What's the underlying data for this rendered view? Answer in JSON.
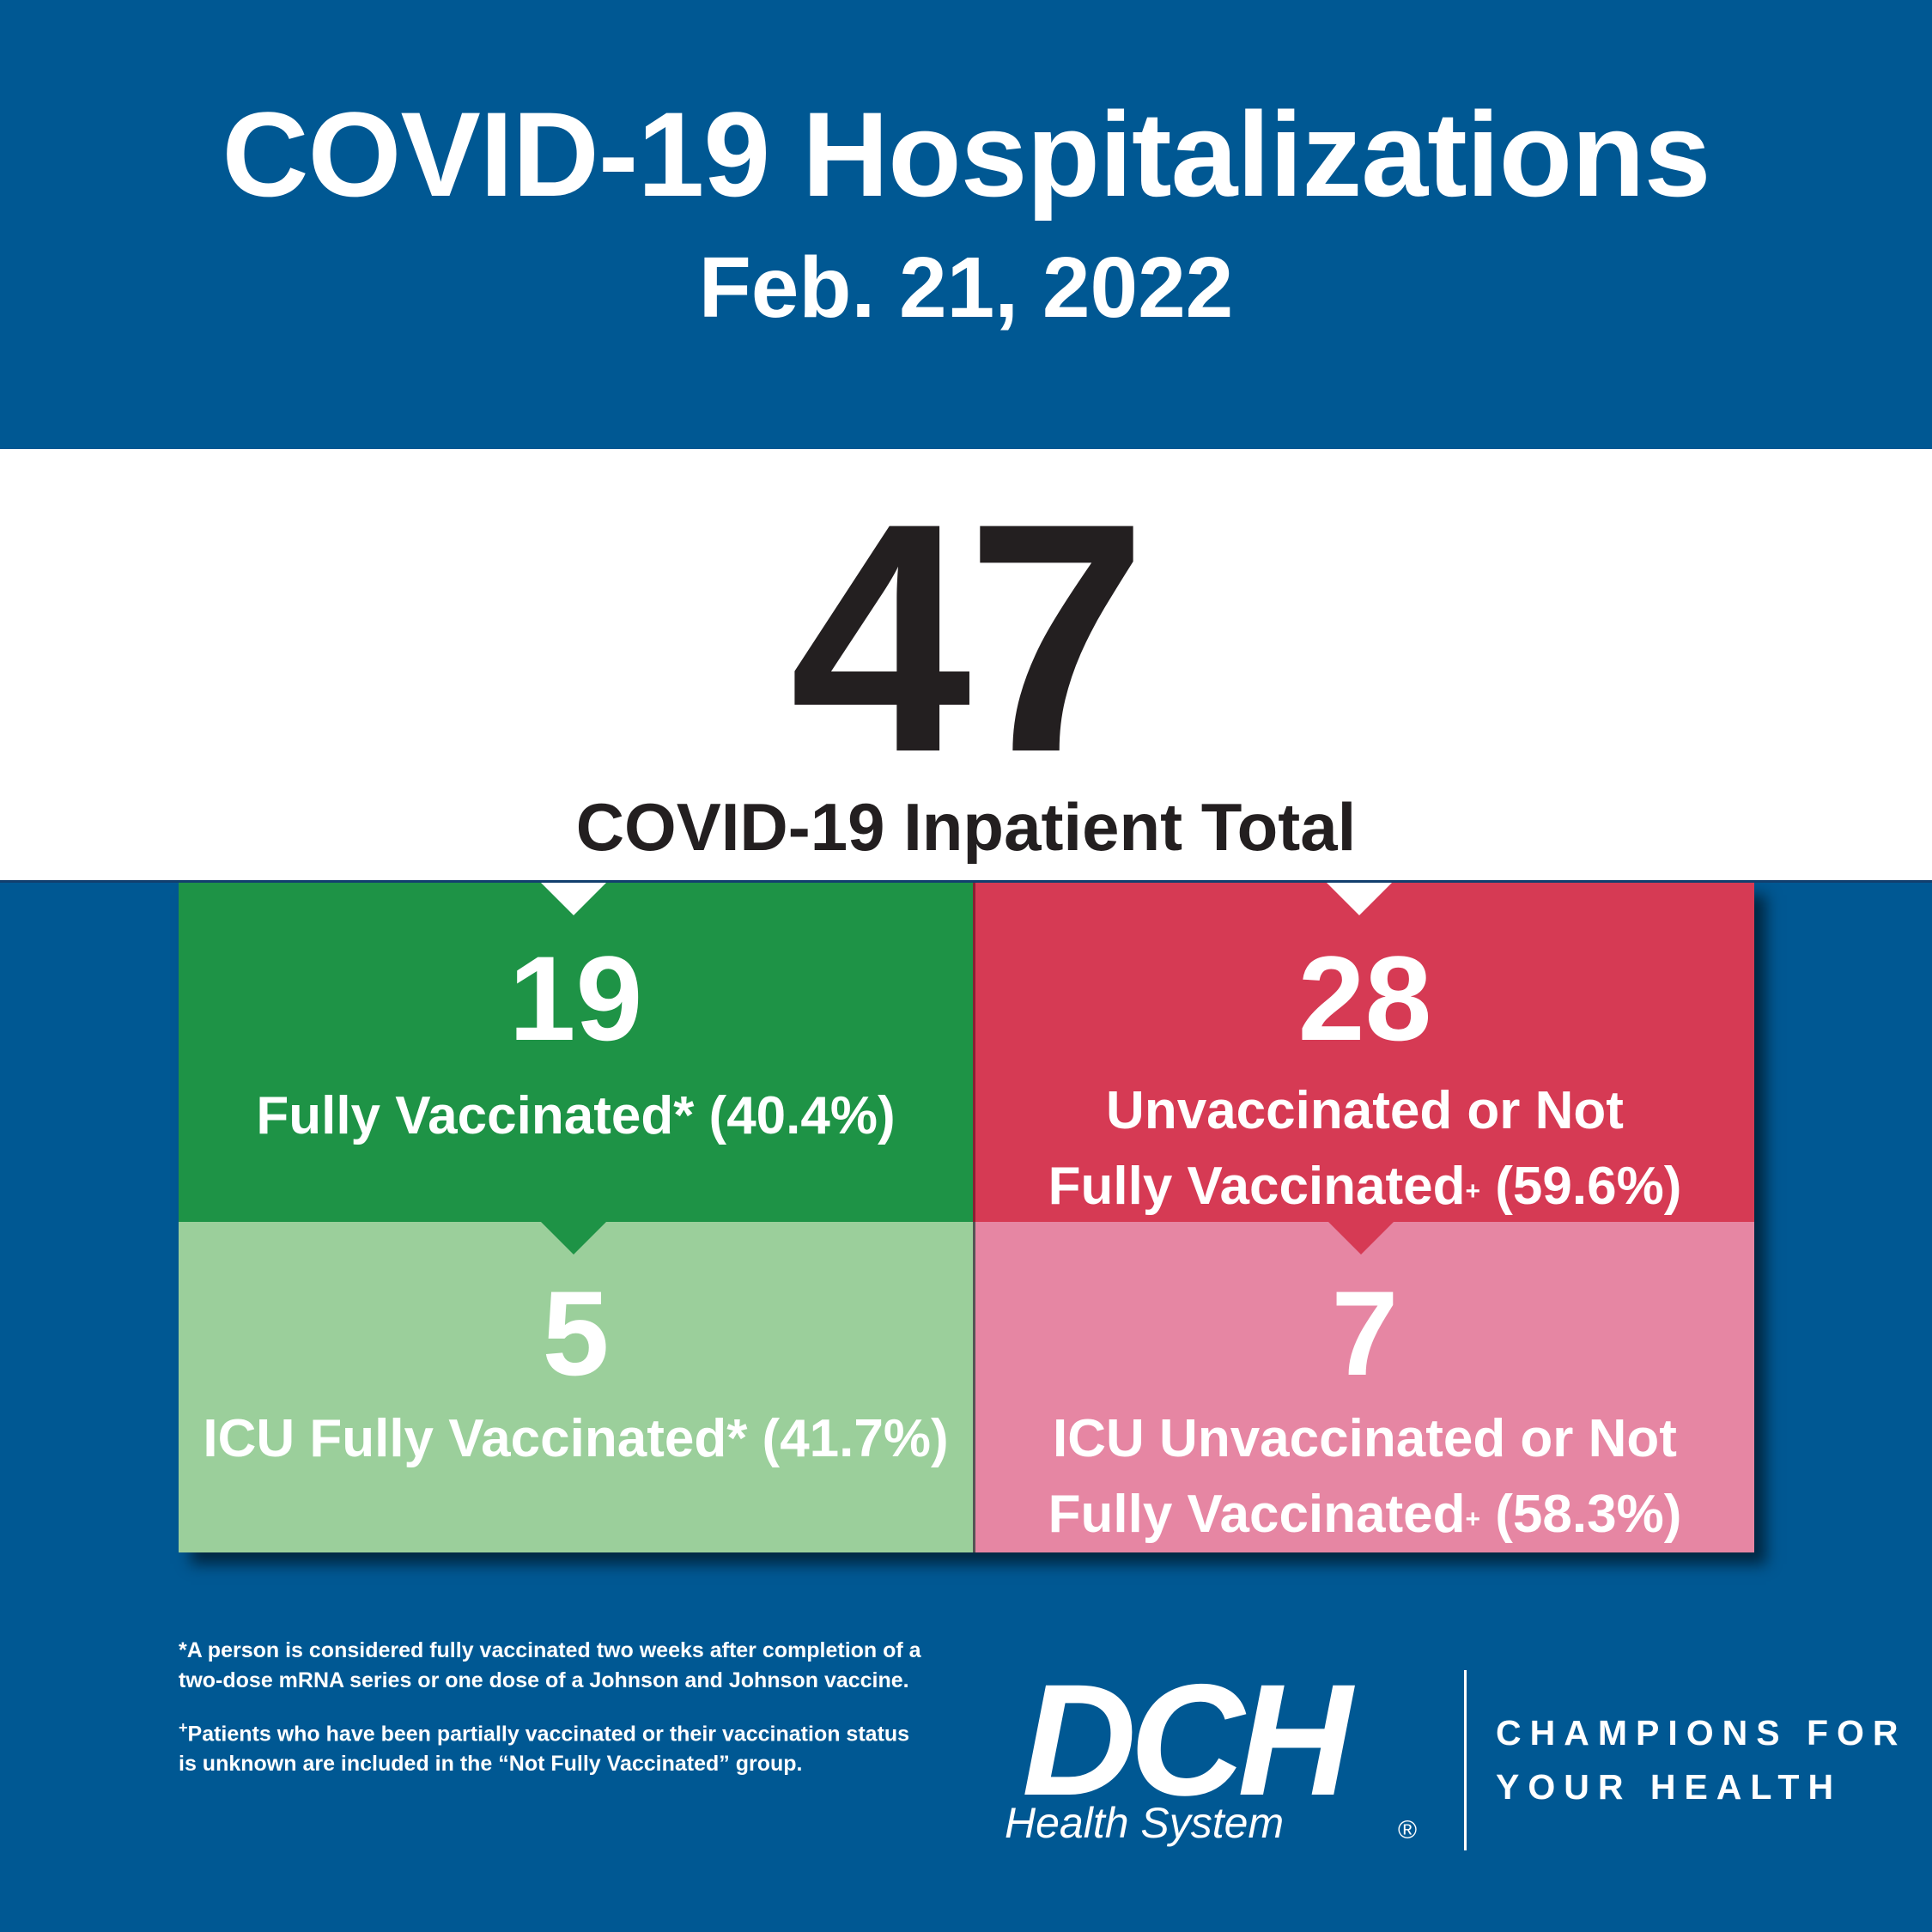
{
  "header": {
    "title": "COVID-19 Hospitalizations",
    "date": "Feb. 21, 2022"
  },
  "total": {
    "value": "47",
    "label": "COVID-19 Inpatient Total"
  },
  "boxes": {
    "fully_vaccinated": {
      "value": "19",
      "label": "Fully Vaccinated* (40.4%)",
      "color": "#1e9346"
    },
    "unvaccinated": {
      "value": "28",
      "line1": "Unvaccinated or Not",
      "line2": "Fully Vaccinated",
      "mark": "+",
      "pct": " (59.6%)",
      "color": "#d63a54"
    },
    "icu_fully_vaccinated": {
      "value": "5",
      "label": "ICU Fully Vaccinated* (41.7%)",
      "color": "#9bcf9b"
    },
    "icu_unvaccinated": {
      "value": "7",
      "line1": "ICU Unvaccinated or Not",
      "line2": "Fully Vaccinated",
      "mark": "+",
      "pct": " (58.3%)",
      "color": "#e686a3"
    }
  },
  "footnotes": {
    "asterisk": "*A person is considered fully vaccinated two weeks after completion of a two-dose mRNA series or one dose of a Johnson and Johnson vaccine.",
    "plus_mark": "+",
    "plus": "Patients who have been partially vaccinated or their vaccination status is unknown are included in the “Not Fully Vaccinated” group."
  },
  "logo": {
    "letters": "DCH",
    "subtitle": "Health System",
    "registered": "®"
  },
  "tagline": {
    "line1": "CHAMPIONS FOR",
    "line2": "YOUR HEALTH"
  }
}
